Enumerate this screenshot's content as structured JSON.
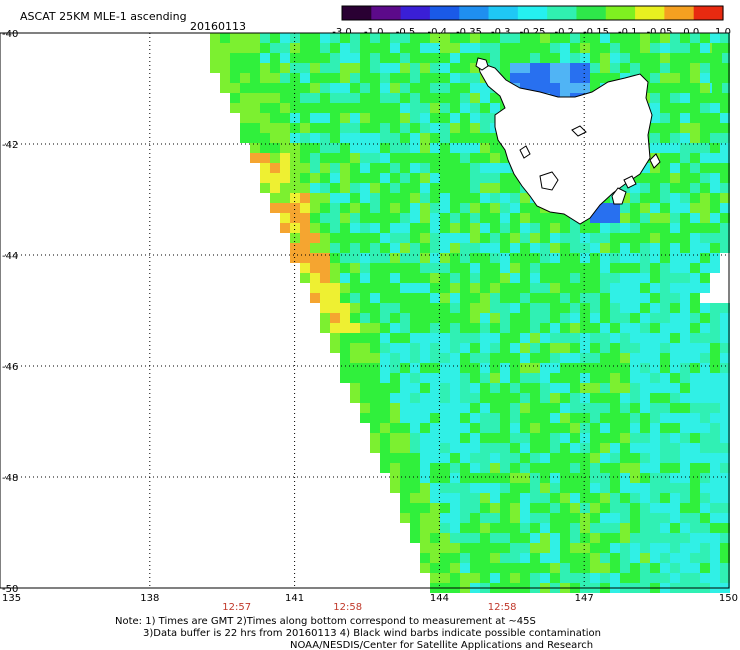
{
  "header": {
    "title": "ASCAT 25KM MLE-1 ascending",
    "date": "20160113"
  },
  "colorbar": {
    "labels": [
      "-3.0",
      "-1.0",
      "-0.5",
      "-0.4",
      "-0.35",
      "-0.3",
      "-0.25",
      "-0.2",
      "-0.15",
      "-0.1",
      "-0.05",
      "0.0",
      "1.0"
    ],
    "colors": [
      "#2a0033",
      "#5c0a8a",
      "#3a1fd6",
      "#1a5ae8",
      "#1f8ff0",
      "#1fc8f5",
      "#25f0f0",
      "#30f0b0",
      "#2ee84a",
      "#7ff020",
      "#e8f020",
      "#f5a020",
      "#e82a10"
    ]
  },
  "axes": {
    "lon_ticks": [
      "135",
      "138",
      "141",
      "144",
      "147",
      "150"
    ],
    "lat_ticks": [
      "-40",
      "-42",
      "-44",
      "-46",
      "-48",
      "-50"
    ]
  },
  "times": [
    "12:57",
    "12:58",
    "12:58"
  ],
  "notes": [
    "Note: 1) Times are GMT 2)Times along bottom correspond to measurement at ~45S",
    "3)Data buffer is 22 hrs from 20160113 4) Black wind barbs indicate possible contamination",
    "NOAA/NESDIS/Center for Satellite Applications and Research"
  ],
  "field_colors": {
    "cyan": "#30f0e6",
    "aqua": "#30f0b4",
    "green": "#30f03c",
    "lime": "#7cf030",
    "yellow": "#eef032",
    "orange": "#f5a530",
    "blue": "#2870f0",
    "lightblue": "#50b4f5",
    "land": "#ffffff",
    "coast": "#000000"
  }
}
